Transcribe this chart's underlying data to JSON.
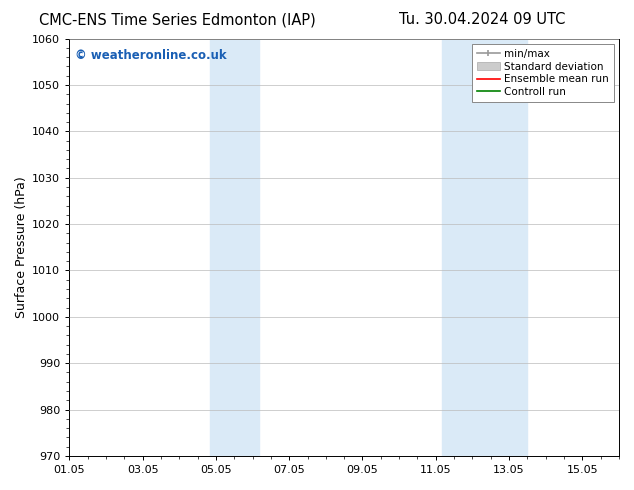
{
  "title_left": "CMC-ENS Time Series Edmonton (IAP)",
  "title_right": "Tu. 30.04.2024 09 UTC",
  "ylabel": "Surface Pressure (hPa)",
  "ylim": [
    970,
    1060
  ],
  "yticks": [
    970,
    980,
    990,
    1000,
    1010,
    1020,
    1030,
    1040,
    1050,
    1060
  ],
  "xlim": [
    0,
    15
  ],
  "xtick_labels": [
    "01.05",
    "03.05",
    "05.05",
    "07.05",
    "09.05",
    "11.05",
    "13.05",
    "15.05"
  ],
  "xtick_positions": [
    0,
    2,
    4,
    6,
    8,
    10,
    12,
    14
  ],
  "shaded_regions": [
    {
      "x_start": 3.83,
      "x_end": 5.17,
      "color": "#daeaf7"
    },
    {
      "x_start": 10.17,
      "x_end": 12.5,
      "color": "#daeaf7"
    }
  ],
  "watermark_text": "© weatheronline.co.uk",
  "watermark_color": "#1a5fb4",
  "legend_labels": [
    "min/max",
    "Standard deviation",
    "Ensemble mean run",
    "Controll run"
  ],
  "legend_colors": [
    "#999999",
    "#cccccc",
    "red",
    "green"
  ],
  "background_color": "#ffffff",
  "grid_color": "#bbbbbb",
  "title_fontsize": 10.5,
  "ylabel_fontsize": 9,
  "tick_fontsize": 8,
  "legend_fontsize": 7.5,
  "watermark_fontsize": 8.5
}
